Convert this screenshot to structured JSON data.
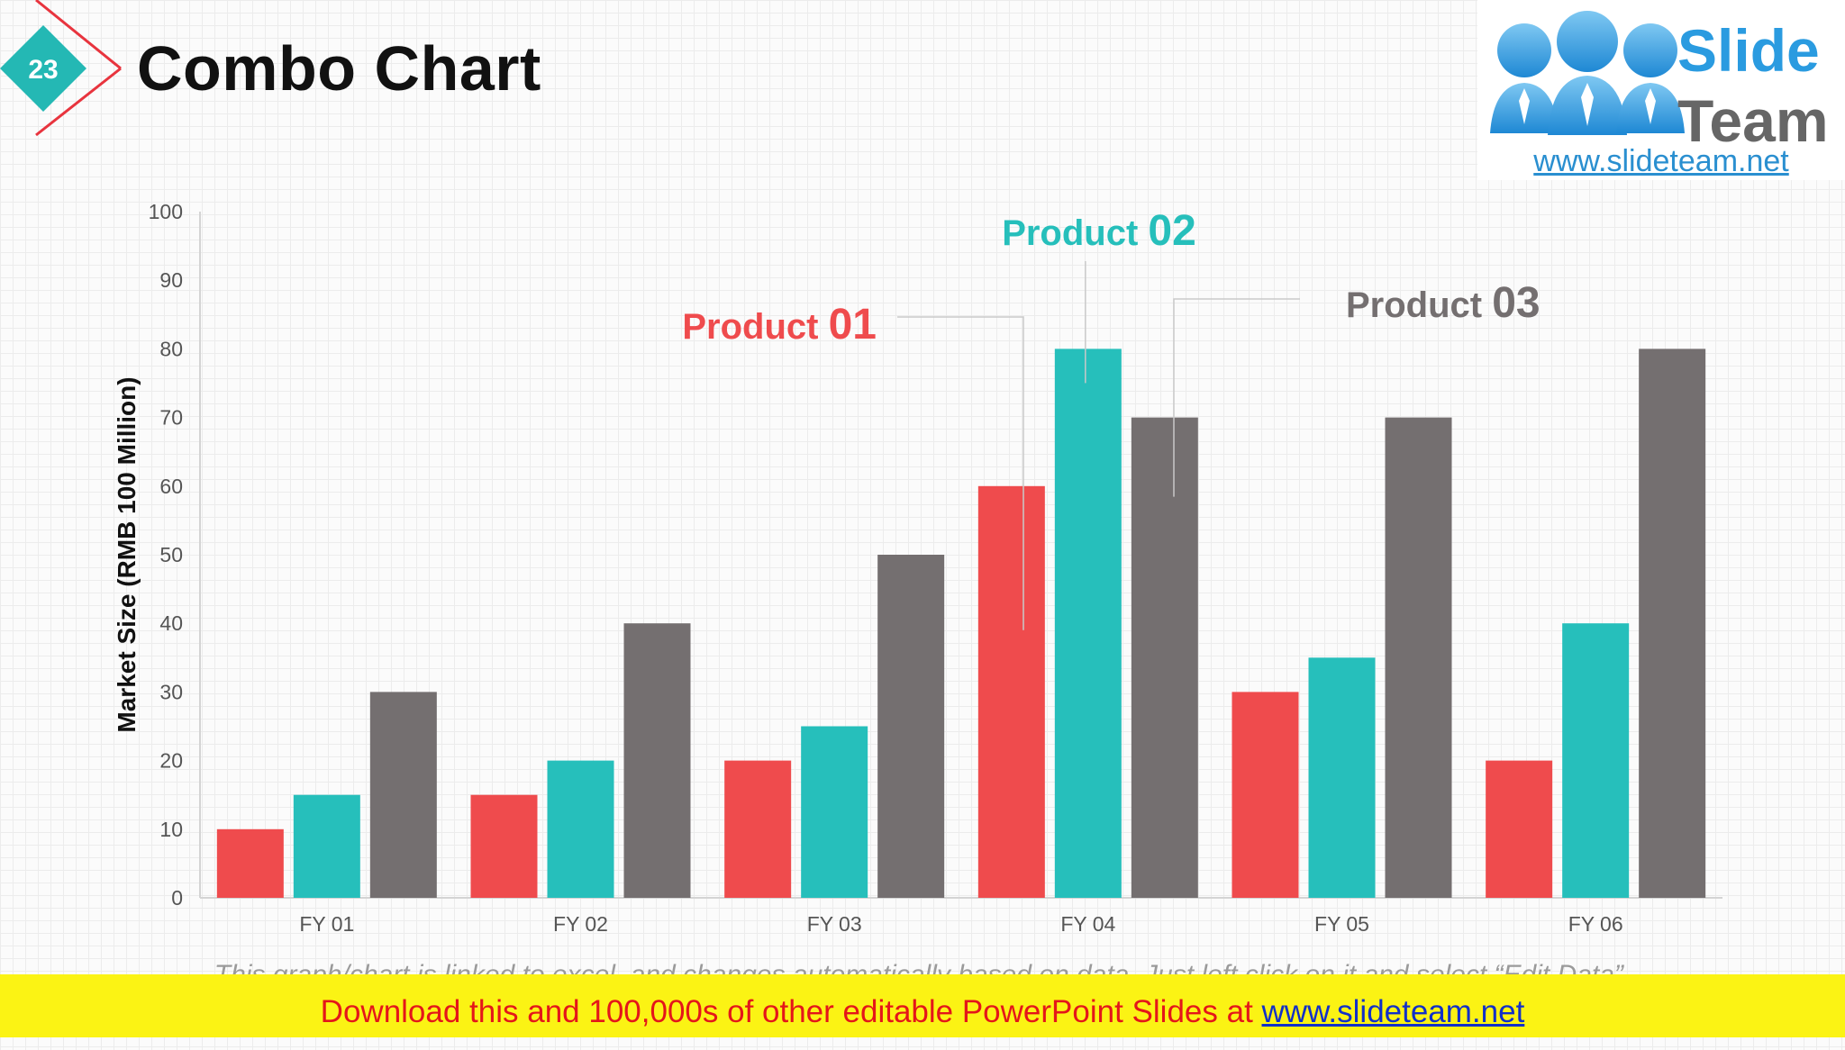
{
  "slide": {
    "number": "23",
    "title": "Combo Chart"
  },
  "logo": {
    "word1": "Slide",
    "word2": "Team",
    "url": "www.slideteam.net"
  },
  "footnote": "This graph/chart is linked to excel, and changes automatically based on data. Just left click on it and select “Edit Data”.",
  "banner": {
    "text": "Download this and 100,000s of other editable PowerPoint Slides at ",
    "link": "www.slideteam.net"
  },
  "colors": {
    "product01": "#ef4b4d",
    "product02": "#26bfbb",
    "product03": "#746f70",
    "accent_red": "#e8343e",
    "accent_teal": "#24b8b4"
  },
  "chart_data": {
    "type": "bar",
    "categories": [
      "FY 01",
      "FY 02",
      "FY 03",
      "FY 04",
      "FY 05",
      "FY 06"
    ],
    "series": [
      {
        "name": "Product 01",
        "values": [
          10,
          15,
          20,
          60,
          30,
          20
        ]
      },
      {
        "name": "Product 02",
        "values": [
          15,
          20,
          25,
          80,
          35,
          40
        ]
      },
      {
        "name": "Product 03",
        "values": [
          30,
          40,
          50,
          70,
          70,
          80
        ]
      }
    ],
    "ylabel": "Market Size (RMB 100 Million)",
    "ylim": [
      0,
      100
    ],
    "yticks": [
      0,
      10,
      20,
      30,
      40,
      50,
      60,
      70,
      80,
      90,
      100
    ],
    "grid": false,
    "callout_category": "FY 04"
  }
}
